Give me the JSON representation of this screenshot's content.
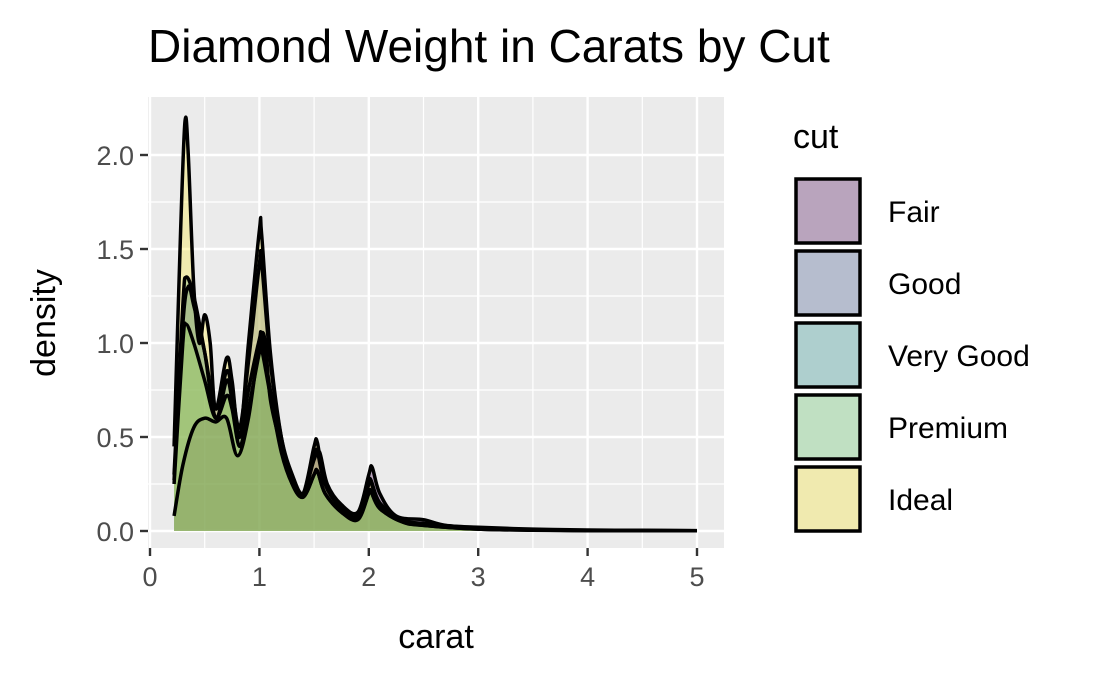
{
  "chart_data": {
    "type": "area",
    "title": "Diamond Weight in Carats by Cut",
    "xlabel": "carat",
    "ylabel": "density",
    "xlim": [
      0,
      5
    ],
    "ylim": [
      0,
      2.25
    ],
    "x_ticks": [
      0,
      1,
      2,
      3,
      4,
      5
    ],
    "x_tick_labels": [
      "0",
      "1",
      "2",
      "3",
      "4",
      "5"
    ],
    "y_ticks": [
      0,
      0.5,
      1,
      1.5,
      2
    ],
    "y_tick_labels": [
      "0.0",
      "0.5",
      "1.0",
      "1.5",
      "2.0"
    ],
    "grid": true,
    "legend": {
      "title": "cut",
      "position": "right",
      "items": [
        "Fair",
        "Good",
        "Very Good",
        "Premium",
        "Ideal"
      ]
    },
    "series": [
      {
        "name": "Fair",
        "color": "#440154",
        "points": [
          [
            0.22,
            0.08
          ],
          [
            0.3,
            0.35
          ],
          [
            0.4,
            0.55
          ],
          [
            0.5,
            0.6
          ],
          [
            0.6,
            0.58
          ],
          [
            0.7,
            0.6
          ],
          [
            0.8,
            0.4
          ],
          [
            0.9,
            0.6
          ],
          [
            1.0,
            1.0
          ],
          [
            1.05,
            1.02
          ],
          [
            1.1,
            0.7
          ],
          [
            1.2,
            0.45
          ],
          [
            1.3,
            0.28
          ],
          [
            1.4,
            0.2
          ],
          [
            1.5,
            0.38
          ],
          [
            1.55,
            0.42
          ],
          [
            1.62,
            0.25
          ],
          [
            1.75,
            0.14
          ],
          [
            1.9,
            0.1
          ],
          [
            2.0,
            0.3
          ],
          [
            2.03,
            0.34
          ],
          [
            2.1,
            0.2
          ],
          [
            2.25,
            0.08
          ],
          [
            2.5,
            0.06
          ],
          [
            2.7,
            0.03
          ],
          [
            3.0,
            0.02
          ],
          [
            3.5,
            0.01
          ],
          [
            4.0,
            0.005
          ],
          [
            4.5,
            0.004
          ],
          [
            5.0,
            0.002
          ]
        ]
      },
      {
        "name": "Good",
        "color": "#3b528b",
        "points": [
          [
            0.22,
            0.27
          ],
          [
            0.3,
            1.1
          ],
          [
            0.35,
            1.3
          ],
          [
            0.4,
            1.2
          ],
          [
            0.5,
            0.95
          ],
          [
            0.6,
            0.65
          ],
          [
            0.7,
            0.85
          ],
          [
            0.75,
            0.75
          ],
          [
            0.82,
            0.55
          ],
          [
            0.9,
            0.9
          ],
          [
            1.0,
            1.42
          ],
          [
            1.02,
            1.43
          ],
          [
            1.1,
            0.9
          ],
          [
            1.2,
            0.5
          ],
          [
            1.3,
            0.3
          ],
          [
            1.4,
            0.2
          ],
          [
            1.5,
            0.4
          ],
          [
            1.53,
            0.42
          ],
          [
            1.6,
            0.25
          ],
          [
            1.75,
            0.12
          ],
          [
            1.9,
            0.08
          ],
          [
            2.0,
            0.25
          ],
          [
            2.02,
            0.27
          ],
          [
            2.1,
            0.15
          ],
          [
            2.3,
            0.06
          ],
          [
            2.5,
            0.04
          ],
          [
            3.0,
            0.015
          ],
          [
            3.5,
            0.006
          ],
          [
            4.0,
            0.003
          ],
          [
            5.0,
            0.001
          ]
        ]
      },
      {
        "name": "Very Good",
        "color": "#21908c",
        "points": [
          [
            0.22,
            0.3
          ],
          [
            0.3,
            1.2
          ],
          [
            0.33,
            1.35
          ],
          [
            0.4,
            1.25
          ],
          [
            0.5,
            0.95
          ],
          [
            0.6,
            0.6
          ],
          [
            0.7,
            0.8
          ],
          [
            0.75,
            0.7
          ],
          [
            0.82,
            0.5
          ],
          [
            0.9,
            0.75
          ],
          [
            1.0,
            1.02
          ],
          [
            1.02,
            1.03
          ],
          [
            1.1,
            0.75
          ],
          [
            1.2,
            0.45
          ],
          [
            1.3,
            0.25
          ],
          [
            1.4,
            0.18
          ],
          [
            1.5,
            0.3
          ],
          [
            1.53,
            0.32
          ],
          [
            1.6,
            0.2
          ],
          [
            1.75,
            0.1
          ],
          [
            1.9,
            0.06
          ],
          [
            2.0,
            0.2
          ],
          [
            2.02,
            0.21
          ],
          [
            2.1,
            0.12
          ],
          [
            2.3,
            0.05
          ],
          [
            2.5,
            0.03
          ],
          [
            3.0,
            0.01
          ],
          [
            3.5,
            0.005
          ],
          [
            4.0,
            0.002
          ],
          [
            5.0,
            0.001
          ]
        ]
      },
      {
        "name": "Premium",
        "color": "#5dc863",
        "points": [
          [
            0.22,
            0.25
          ],
          [
            0.3,
            1.0
          ],
          [
            0.33,
            1.1
          ],
          [
            0.4,
            1.0
          ],
          [
            0.5,
            0.8
          ],
          [
            0.6,
            0.6
          ],
          [
            0.7,
            0.72
          ],
          [
            0.75,
            0.65
          ],
          [
            0.82,
            0.45
          ],
          [
            0.9,
            0.65
          ],
          [
            1.0,
            0.95
          ],
          [
            1.02,
            0.97
          ],
          [
            1.1,
            0.72
          ],
          [
            1.2,
            0.42
          ],
          [
            1.3,
            0.25
          ],
          [
            1.4,
            0.18
          ],
          [
            1.5,
            0.3
          ],
          [
            1.53,
            0.32
          ],
          [
            1.6,
            0.2
          ],
          [
            1.75,
            0.1
          ],
          [
            1.9,
            0.07
          ],
          [
            2.0,
            0.2
          ],
          [
            2.02,
            0.21
          ],
          [
            2.1,
            0.12
          ],
          [
            2.3,
            0.05
          ],
          [
            2.5,
            0.04
          ],
          [
            3.0,
            0.015
          ],
          [
            3.5,
            0.006
          ],
          [
            4.0,
            0.003
          ],
          [
            5.0,
            0.001
          ]
        ]
      },
      {
        "name": "Ideal",
        "color": "#fde725",
        "points": [
          [
            0.22,
            0.45
          ],
          [
            0.28,
            1.6
          ],
          [
            0.32,
            2.18
          ],
          [
            0.35,
            2.0
          ],
          [
            0.4,
            1.3
          ],
          [
            0.45,
            1.0
          ],
          [
            0.5,
            1.15
          ],
          [
            0.55,
            1.0
          ],
          [
            0.6,
            0.65
          ],
          [
            0.7,
            0.92
          ],
          [
            0.75,
            0.8
          ],
          [
            0.82,
            0.5
          ],
          [
            0.9,
            1.0
          ],
          [
            1.0,
            1.6
          ],
          [
            1.02,
            1.58
          ],
          [
            1.1,
            0.95
          ],
          [
            1.2,
            0.5
          ],
          [
            1.3,
            0.28
          ],
          [
            1.4,
            0.2
          ],
          [
            1.5,
            0.45
          ],
          [
            1.53,
            0.47
          ],
          [
            1.6,
            0.25
          ],
          [
            1.75,
            0.12
          ],
          [
            1.9,
            0.08
          ],
          [
            2.0,
            0.25
          ],
          [
            2.02,
            0.26
          ],
          [
            2.1,
            0.14
          ],
          [
            2.3,
            0.05
          ],
          [
            2.5,
            0.03
          ],
          [
            3.0,
            0.01
          ],
          [
            3.5,
            0.004
          ],
          [
            4.0,
            0.002
          ],
          [
            5.0,
            0.001
          ]
        ]
      }
    ]
  }
}
